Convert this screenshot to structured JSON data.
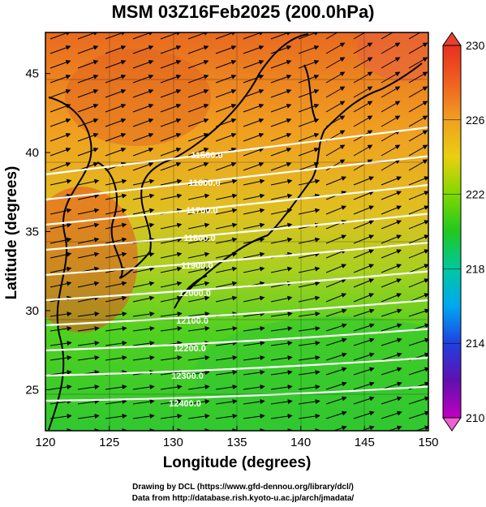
{
  "title": "MSM 03Z16Feb2025 (200.0hPa)",
  "credits": {
    "line1": "Drawing by DCL (https://www.gfd-dennou.org/library/dcl/)",
    "line2": "Data from http://database.rish.kyoto-u.ac.jp/arch/jmadata/"
  },
  "map": {
    "xlabel": "Longitude (degrees)",
    "ylabel": "Latitude  (degrees)",
    "lon_range": [
      120,
      150
    ],
    "lat_range": [
      22.4,
      47.6
    ],
    "lon_ticks": [
      "120",
      "125",
      "130",
      "135",
      "140",
      "145",
      "150"
    ],
    "lat_ticks": [
      "25",
      "30",
      "35",
      "40",
      "45"
    ],
    "colorbar": {
      "min": 210,
      "max": 230,
      "labels": [
        "230",
        "226",
        "222",
        "218",
        "214",
        "210"
      ],
      "colors": [
        "#8b008b",
        "#2020d0",
        "#00aaff",
        "#00c8a0",
        "#20c820",
        "#80d800",
        "#e8d000",
        "#f0a000",
        "#e86000",
        "#d83000",
        "#f08080"
      ]
    },
    "contours": [
      {
        "label": "11500.0"
      },
      {
        "label": "11600.0"
      },
      {
        "label": "11700.0"
      },
      {
        "label": "11800.0"
      },
      {
        "label": "11900.0"
      },
      {
        "label": "12000.0"
      },
      {
        "label": "12100.0"
      },
      {
        "label": "12200.0"
      },
      {
        "label": "12300.0"
      },
      {
        "label": "12400.0"
      }
    ]
  }
}
